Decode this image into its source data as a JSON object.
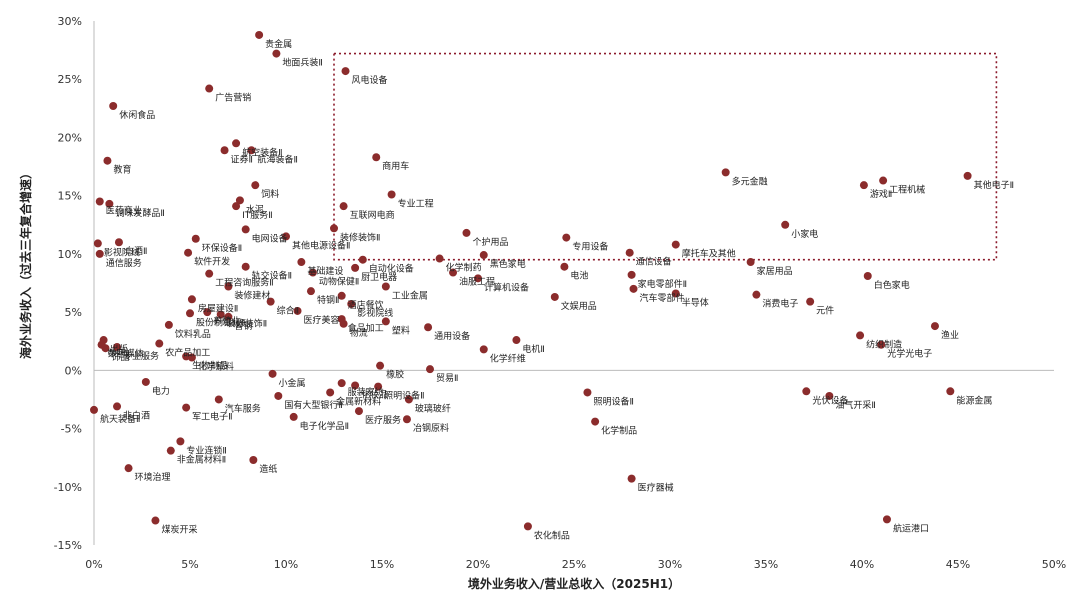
{
  "chart_data": {
    "type": "scatter",
    "xlabel": "境外业务收入/营业总收入（2025H1）",
    "ylabel": "海外业务收入（过去三年复合增速）",
    "xlim": [
      0,
      50
    ],
    "ylim": [
      -15,
      30
    ],
    "x_ticks": [
      "0%",
      "5%",
      "10%",
      "15%",
      "20%",
      "25%",
      "30%",
      "35%",
      "40%",
      "45%",
      "50%"
    ],
    "y_ticks": [
      "-15%",
      "-10%",
      "-5%",
      "0%",
      "5%",
      "10%",
      "15%",
      "20%",
      "25%",
      "30%"
    ],
    "x_tick_values": [
      0,
      5,
      10,
      15,
      20,
      25,
      30,
      35,
      40,
      45,
      50
    ],
    "y_tick_values": [
      -15,
      -10,
      -5,
      0,
      5,
      10,
      15,
      20,
      25,
      30
    ],
    "highlight_box": {
      "x": [
        12.5,
        47.0
      ],
      "y": [
        9.5,
        27.2
      ]
    },
    "colors": {
      "point": "#8b2c2c",
      "box": "#8b1a2b",
      "axis": "#bbbbbb"
    },
    "points": [
      {
        "label": "贵金属",
        "x": 8.6,
        "y": 28.8
      },
      {
        "label": "地面兵装Ⅱ",
        "x": 9.5,
        "y": 27.2
      },
      {
        "label": "风电设备",
        "x": 13.1,
        "y": 25.7
      },
      {
        "label": "广告营销",
        "x": 6.0,
        "y": 24.2
      },
      {
        "label": "休闲食品",
        "x": 1.0,
        "y": 22.7
      },
      {
        "label": "航空装备Ⅱ",
        "x": 7.4,
        "y": 19.5
      },
      {
        "label": "证券Ⅱ",
        "x": 6.8,
        "y": 18.9
      },
      {
        "label": "航海装备Ⅱ",
        "x": 8.2,
        "y": 18.9
      },
      {
        "label": "商用车",
        "x": 14.7,
        "y": 18.3
      },
      {
        "label": "教育",
        "x": 0.7,
        "y": 18.0
      },
      {
        "label": "多元金融",
        "x": 32.9,
        "y": 17.0
      },
      {
        "label": "其他电子Ⅱ",
        "x": 45.5,
        "y": 16.7
      },
      {
        "label": "工程机械",
        "x": 41.1,
        "y": 16.3
      },
      {
        "label": "游戏Ⅱ",
        "x": 40.1,
        "y": 15.9
      },
      {
        "label": "饲料",
        "x": 8.4,
        "y": 15.9
      },
      {
        "label": "专业工程",
        "x": 15.5,
        "y": 15.1
      },
      {
        "label": "医药商业",
        "x": 0.3,
        "y": 14.5
      },
      {
        "label": "调味发酵品Ⅱ",
        "x": 0.8,
        "y": 14.3
      },
      {
        "label": "水泥",
        "x": 7.6,
        "y": 14.6
      },
      {
        "label": "IT服务Ⅱ",
        "x": 7.4,
        "y": 14.1
      },
      {
        "label": "互联网电商",
        "x": 13.0,
        "y": 14.1
      },
      {
        "label": "小家电",
        "x": 36.0,
        "y": 12.5
      },
      {
        "label": "电网设备",
        "x": 7.9,
        "y": 12.1
      },
      {
        "label": "环保设备Ⅱ",
        "x": 5.3,
        "y": 11.3
      },
      {
        "label": "其他电源设备Ⅱ",
        "x": 10.0,
        "y": 11.5
      },
      {
        "label": "装修装饰Ⅱ",
        "x": 12.5,
        "y": 12.2
      },
      {
        "label": "个护用品",
        "x": 19.4,
        "y": 11.8
      },
      {
        "label": "专用设备",
        "x": 24.6,
        "y": 11.4
      },
      {
        "label": "摩托车及其他",
        "x": 30.3,
        "y": 10.8
      },
      {
        "label": "白酒Ⅱ",
        "x": 1.3,
        "y": 11.0
      },
      {
        "label": "影视院线",
        "x": 0.2,
        "y": 10.9
      },
      {
        "label": "软件开发",
        "x": 4.9,
        "y": 10.1
      },
      {
        "label": "通信服务",
        "x": 0.3,
        "y": 10.0
      },
      {
        "label": "通信设备",
        "x": 27.9,
        "y": 10.1
      },
      {
        "label": "黑色家电",
        "x": 20.3,
        "y": 9.9
      },
      {
        "label": "化学制药",
        "x": 18.0,
        "y": 9.6
      },
      {
        "label": "自动化设备",
        "x": 14.0,
        "y": 9.5
      },
      {
        "label": "基础建设",
        "x": 10.8,
        "y": 9.3
      },
      {
        "label": "轨交设备Ⅱ",
        "x": 7.9,
        "y": 8.9
      },
      {
        "label": "家居用品",
        "x": 34.2,
        "y": 9.3
      },
      {
        "label": "电池",
        "x": 24.5,
        "y": 8.9
      },
      {
        "label": "家电零部件Ⅱ",
        "x": 28.0,
        "y": 8.2
      },
      {
        "label": "白色家电",
        "x": 40.3,
        "y": 8.1
      },
      {
        "label": "工程咨询服务Ⅱ",
        "x": 6.0,
        "y": 8.3
      },
      {
        "label": "动物保健Ⅱ",
        "x": 11.4,
        "y": 8.4
      },
      {
        "label": "厨卫电器",
        "x": 13.6,
        "y": 8.8
      },
      {
        "label": "计算机设备",
        "x": 20.0,
        "y": 7.9
      },
      {
        "label": "装修建材",
        "x": 7.0,
        "y": 7.2
      },
      {
        "label": "特钢Ⅱ",
        "x": 11.3,
        "y": 6.8
      },
      {
        "label": "工业金属",
        "x": 15.2,
        "y": 7.2
      },
      {
        "label": "油服工程",
        "x": 18.7,
        "y": 8.4
      },
      {
        "label": "汽车零部件",
        "x": 28.1,
        "y": 7.0
      },
      {
        "label": "消费电子",
        "x": 34.5,
        "y": 6.5
      },
      {
        "label": "元件",
        "x": 37.3,
        "y": 5.9
      },
      {
        "label": "半导体",
        "x": 30.3,
        "y": 6.6
      },
      {
        "label": "文娱用品",
        "x": 24.0,
        "y": 6.3
      },
      {
        "label": "房屋建设Ⅱ",
        "x": 5.1,
        "y": 6.1
      },
      {
        "label": "综合Ⅱ",
        "x": 9.2,
        "y": 5.9
      },
      {
        "label": "养殖业",
        "x": 5.9,
        "y": 5.0
      },
      {
        "label": "酒店餐饮",
        "x": 12.9,
        "y": 6.4
      },
      {
        "label": "影视院线",
        "x": 13.4,
        "y": 5.7
      },
      {
        "label": "股份制银行Ⅱ",
        "x": 5.0,
        "y": 4.9
      },
      {
        "label": "装修装饰Ⅱ",
        "x": 6.6,
        "y": 4.8
      },
      {
        "label": "普钢",
        "x": 7.0,
        "y": 4.6
      },
      {
        "label": "医疗美容",
        "x": 10.6,
        "y": 5.1
      },
      {
        "label": "食品加工",
        "x": 12.9,
        "y": 4.4
      },
      {
        "label": "饮料乳品",
        "x": 3.9,
        "y": 3.9
      },
      {
        "label": "物流",
        "x": 13.0,
        "y": 4.0
      },
      {
        "label": "塑料",
        "x": 15.2,
        "y": 4.2
      },
      {
        "label": "通用设备",
        "x": 17.4,
        "y": 3.7
      },
      {
        "label": "纺织制造",
        "x": 39.9,
        "y": 3.0
      },
      {
        "label": "渔业",
        "x": 43.8,
        "y": 3.8
      },
      {
        "label": "光学光电子",
        "x": 41.0,
        "y": 2.2
      },
      {
        "label": "电机Ⅱ",
        "x": 22.0,
        "y": 2.6
      },
      {
        "label": "化学纤维",
        "x": 20.3,
        "y": 1.8
      },
      {
        "label": "出版",
        "x": 0.5,
        "y": 2.6
      },
      {
        "label": "中药Ⅱ",
        "x": 0.4,
        "y": 2.2
      },
      {
        "label": "数字媒体",
        "x": 0.4,
        "y": 2.2
      },
      {
        "label": "饰品",
        "x": 0.6,
        "y": 1.9
      },
      {
        "label": "专业服务",
        "x": 1.2,
        "y": 2.0
      },
      {
        "label": "农产品加工",
        "x": 3.4,
        "y": 2.3
      },
      {
        "label": "生物制品",
        "x": 4.8,
        "y": 1.2
      },
      {
        "label": "化学原料",
        "x": 5.1,
        "y": 1.1
      },
      {
        "label": "橡胶",
        "x": 14.9,
        "y": 0.4
      },
      {
        "label": "贸易Ⅱ",
        "x": 17.5,
        "y": 0.1
      },
      {
        "label": "小金属",
        "x": 9.3,
        "y": -0.3
      },
      {
        "label": "电力",
        "x": 2.7,
        "y": -1.0
      },
      {
        "label": "服装家纺",
        "x": 12.9,
        "y": -1.1
      },
      {
        "label": "化妆品",
        "x": 13.6,
        "y": -1.3
      },
      {
        "label": "照明设备Ⅱ",
        "x": 14.8,
        "y": -1.4
      },
      {
        "label": "光伏设备",
        "x": 37.1,
        "y": -1.8
      },
      {
        "label": "能源金属",
        "x": 44.6,
        "y": -1.8
      },
      {
        "label": "国有大型银行Ⅱ",
        "x": 9.6,
        "y": -2.2
      },
      {
        "label": "金属新材料",
        "x": 12.3,
        "y": -1.9
      },
      {
        "label": "玻璃玻纤",
        "x": 16.4,
        "y": -2.5
      },
      {
        "label": "医疗服务",
        "x": 13.8,
        "y": -3.5
      },
      {
        "label": "照明设备Ⅱ",
        "x": 25.7,
        "y": -1.9
      },
      {
        "label": "油气开采Ⅱ",
        "x": 38.3,
        "y": -2.2
      },
      {
        "label": "航天装备Ⅱ",
        "x": 0.0,
        "y": -3.4
      },
      {
        "label": "非白酒",
        "x": 1.2,
        "y": -3.1
      },
      {
        "label": "汽车服务",
        "x": 6.5,
        "y": -2.5
      },
      {
        "label": "军工电子Ⅱ",
        "x": 4.8,
        "y": -3.2
      },
      {
        "label": "冶钢原料",
        "x": 16.3,
        "y": -4.2
      },
      {
        "label": "电子化学品Ⅱ",
        "x": 10.4,
        "y": -4.0
      },
      {
        "label": "化学制品",
        "x": 26.1,
        "y": -4.4
      },
      {
        "label": "专业连锁Ⅱ",
        "x": 4.5,
        "y": -6.1
      },
      {
        "label": "非金属材料Ⅱ",
        "x": 4.0,
        "y": -6.9
      },
      {
        "label": "造纸",
        "x": 8.3,
        "y": -7.7
      },
      {
        "label": "环境治理",
        "x": 1.8,
        "y": -8.4
      },
      {
        "label": "医疗器械",
        "x": 28.0,
        "y": -9.3
      },
      {
        "label": "煤炭开采",
        "x": 3.2,
        "y": -12.9
      },
      {
        "label": "农化制品",
        "x": 22.6,
        "y": -13.4
      },
      {
        "label": "航运港口",
        "x": 41.3,
        "y": -12.8
      }
    ]
  }
}
